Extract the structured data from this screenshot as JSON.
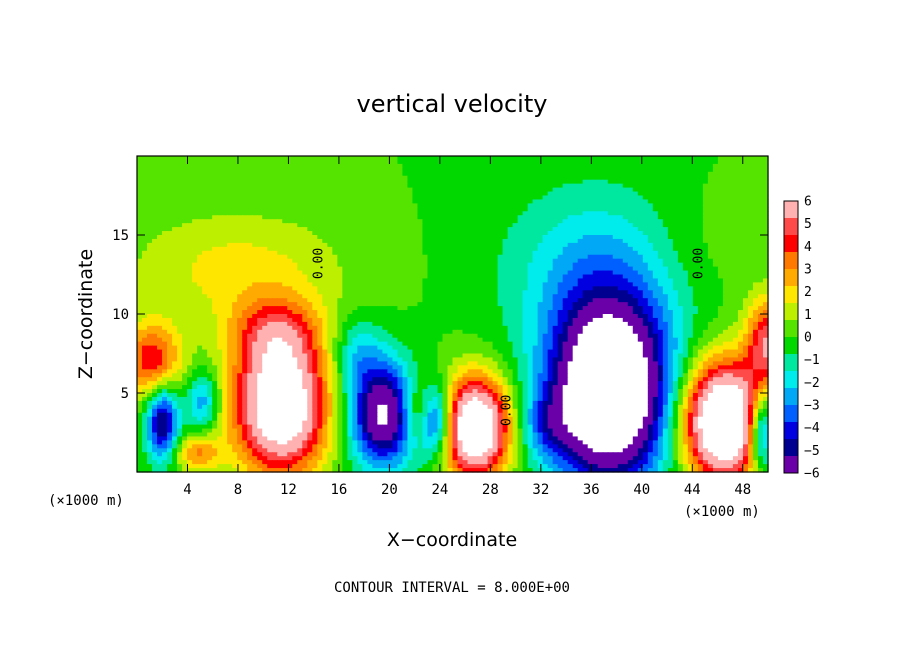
{
  "chart_data": {
    "type": "heatmap",
    "title": "vertical velocity",
    "xlabel": "X−coordinate",
    "ylabel": "Z−coordinate",
    "x_unit_left": "(×1000 m)",
    "x_unit_right": "(×1000 m)",
    "xlim": [
      0,
      50
    ],
    "ylim": [
      0,
      20
    ],
    "x_ticks": [
      4,
      8,
      12,
      16,
      20,
      24,
      28,
      32,
      36,
      40,
      44,
      48
    ],
    "y_ticks": [
      5,
      10,
      15
    ],
    "colorbar": {
      "range": [
        -6,
        6
      ],
      "labels": [
        "6",
        "5",
        "4",
        "3",
        "2",
        "1",
        "0",
        "−1",
        "−2",
        "−3",
        "−4",
        "−5",
        "−6"
      ],
      "colors": [
        "#ffb0b0",
        "#ff4a4a",
        "#ff0000",
        "#ff7800",
        "#ffaa00",
        "#ffe600",
        "#bcf000",
        "#55e400",
        "#00d800",
        "#00e8a0",
        "#00ecec",
        "#00a8f5",
        "#0060ff",
        "#0000e0",
        "#000090",
        "#6a00a8"
      ]
    },
    "contour_labels": [
      {
        "text": "0.00",
        "x": 14.7,
        "y": 13.2
      },
      {
        "text": "0.00",
        "x": 29.6,
        "y": 3.9
      },
      {
        "text": "0.00",
        "x": 44.8,
        "y": 13.2
      }
    ],
    "features": [
      {
        "x": 1.2,
        "z": 7.0,
        "amp": 4.5,
        "sx": 1.6,
        "sz": 1.7
      },
      {
        "x": 2.0,
        "z": 3.2,
        "amp": -5.5,
        "sx": 0.9,
        "sz": 1.7
      },
      {
        "x": 4.8,
        "z": 1.2,
        "amp": 3.0,
        "sx": 1.3,
        "sz": 0.8
      },
      {
        "x": 5.2,
        "z": 4.5,
        "amp": -3.0,
        "sx": 0.9,
        "sz": 1.3
      },
      {
        "x": 11.4,
        "z": 4.2,
        "amp": 9.0,
        "sx": 2.6,
        "sz": 3.0
      },
      {
        "x": 11.0,
        "z": 8.8,
        "amp": 3.0,
        "sx": 2.5,
        "sz": 1.6
      },
      {
        "x": 19.5,
        "z": 3.6,
        "amp": -7.0,
        "sx": 1.9,
        "sz": 2.3
      },
      {
        "x": 17.5,
        "z": 7.5,
        "amp": -2.0,
        "sx": 1.4,
        "sz": 1.6
      },
      {
        "x": 22.2,
        "z": 3.8,
        "amp": 3.0,
        "sx": 0.9,
        "sz": 1.4
      },
      {
        "x": 23.7,
        "z": 3.2,
        "amp": -5.0,
        "sx": 1.0,
        "sz": 1.6
      },
      {
        "x": 26.8,
        "z": 2.8,
        "amp": 9.5,
        "sx": 1.9,
        "sz": 2.2
      },
      {
        "x": 37.4,
        "z": 5.0,
        "amp": -10.5,
        "sx": 3.3,
        "sz": 4.0
      },
      {
        "x": 37.0,
        "z": 12.8,
        "amp": -2.3,
        "sx": 5.5,
        "sz": 3.8
      },
      {
        "x": 32.5,
        "z": 3.0,
        "amp": -2.0,
        "sx": 1.5,
        "sz": 1.5
      },
      {
        "x": 46.5,
        "z": 3.2,
        "amp": 10.5,
        "sx": 2.3,
        "sz": 2.6
      },
      {
        "x": 50.0,
        "z": 8.2,
        "amp": 5.0,
        "sx": 1.2,
        "sz": 2.0
      },
      {
        "x": 49.5,
        "z": 2.6,
        "amp": -6.0,
        "sx": 0.8,
        "sz": 1.8
      },
      {
        "x": 8.0,
        "z": 12.8,
        "amp": 1.8,
        "sx": 6.0,
        "sz": 2.6
      },
      {
        "x": 44.0,
        "z": 14.0,
        "amp": 0.8,
        "sx": 4.0,
        "sz": 3.0
      }
    ],
    "grid": false,
    "legend": "right"
  },
  "footer": {
    "contour_interval": "CONTOUR INTERVAL = 8.000E+00"
  }
}
